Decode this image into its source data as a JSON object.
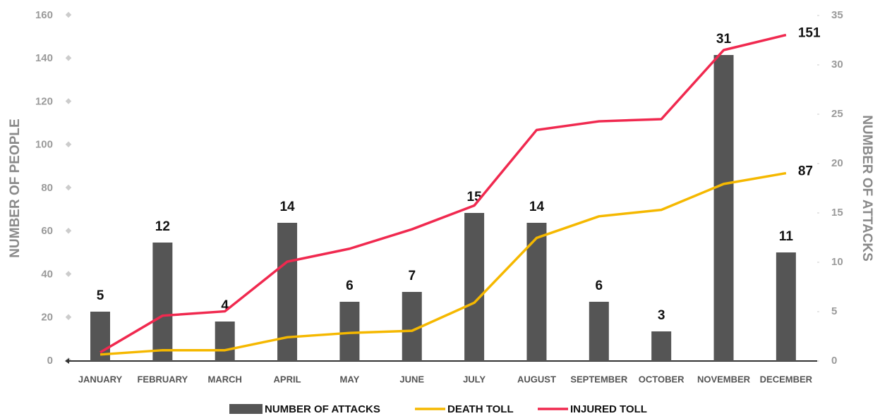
{
  "chart_data": {
    "type": "combo",
    "categories": [
      "JANUARY",
      "FEBRUARY",
      "MARCH",
      "APRIL",
      "MAY",
      "JUNE",
      "JULY",
      "AUGUST",
      "SEPTEMBER",
      "OCTOBER",
      "NOVEMBER",
      "DECEMBER"
    ],
    "y_label": "NUMBER OF PEOPLE",
    "y2_label": "NUMBER OF ATTACKS",
    "ylim": [
      0,
      160
    ],
    "yticks": [
      0,
      20,
      40,
      60,
      80,
      100,
      120,
      140,
      160
    ],
    "y2lim": [
      0,
      35
    ],
    "y2ticks": [
      0,
      5,
      10,
      15,
      20,
      25,
      30,
      35
    ],
    "grid": false,
    "legend": "bottom",
    "series": [
      {
        "name": "NUMBER OF ATTACKS",
        "type": "bar",
        "axis": "y2",
        "color": "#555555",
        "values": [
          5,
          12,
          4,
          14,
          6,
          7,
          15,
          14,
          6,
          3,
          31,
          11
        ]
      },
      {
        "name": "DEATH TOLL",
        "type": "line",
        "color": "#f5b800",
        "values": [
          3,
          5,
          5,
          11,
          13,
          14,
          27,
          57,
          67,
          70,
          82,
          87
        ]
      },
      {
        "name": "INJURED TOLL",
        "type": "line",
        "color": "#f0294f",
        "values": [
          4,
          21,
          23,
          46,
          52,
          61,
          72,
          107,
          111,
          112,
          144,
          151
        ]
      }
    ]
  }
}
